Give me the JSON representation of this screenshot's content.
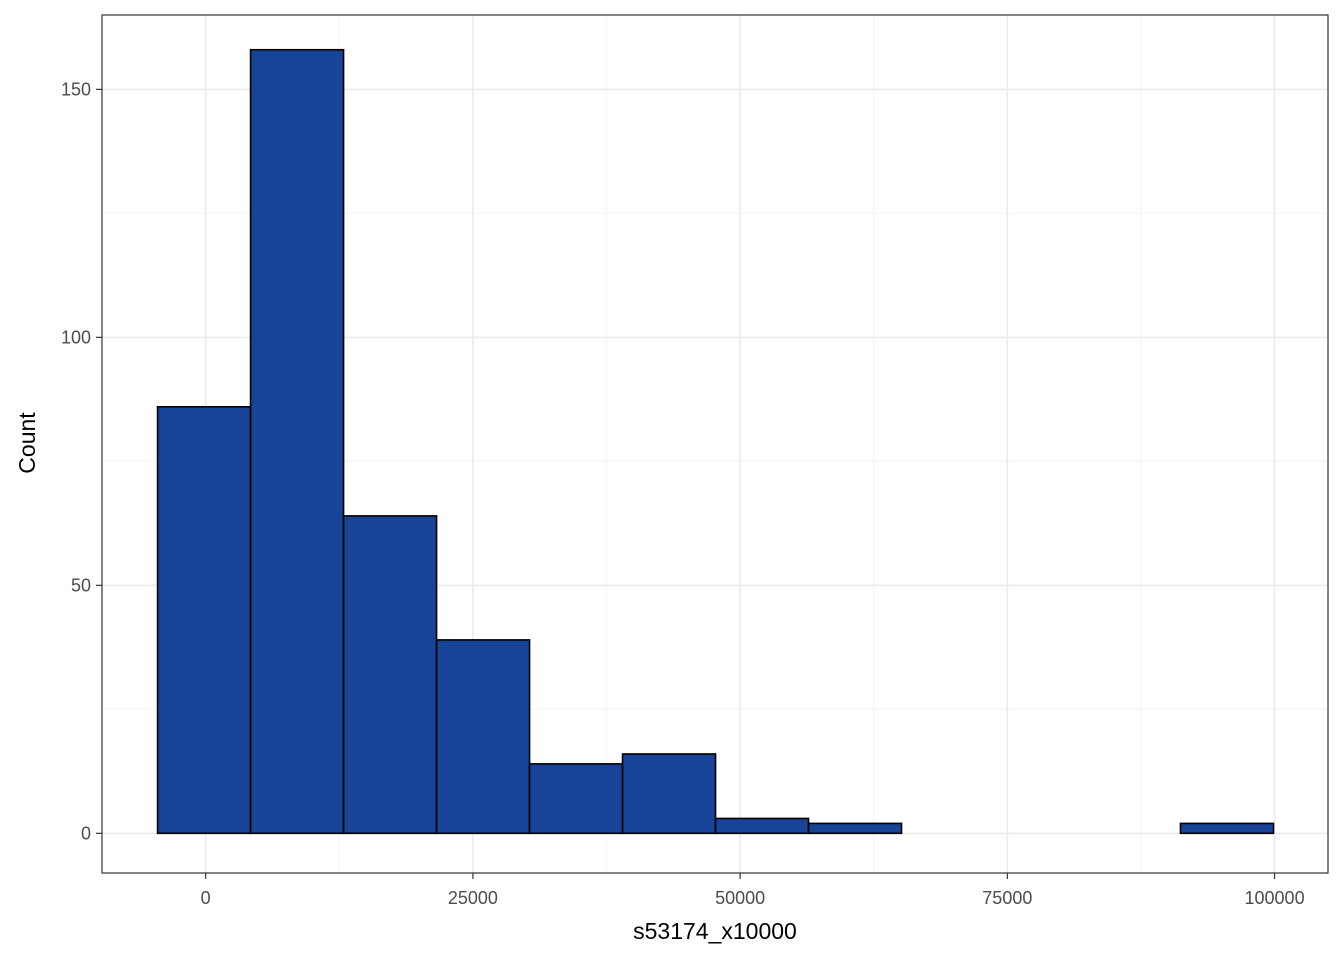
{
  "chart_data": {
    "type": "bar",
    "subtype": "histogram",
    "title": "",
    "xlabel": "s53174_x10000",
    "ylabel": "Count",
    "bins": [
      {
        "x0": -4500,
        "x1": 4200,
        "count": 86
      },
      {
        "x0": 4200,
        "x1": 12900,
        "count": 158
      },
      {
        "x0": 12900,
        "x1": 21600,
        "count": 64
      },
      {
        "x0": 21600,
        "x1": 30300,
        "count": 39
      },
      {
        "x0": 30300,
        "x1": 39000,
        "count": 14
      },
      {
        "x0": 39000,
        "x1": 47700,
        "count": 16
      },
      {
        "x0": 47700,
        "x1": 56400,
        "count": 3
      },
      {
        "x0": 56400,
        "x1": 65100,
        "count": 2
      },
      {
        "x0": 65100,
        "x1": 73800,
        "count": 0
      },
      {
        "x0": 73800,
        "x1": 82500,
        "count": 0
      },
      {
        "x0": 82500,
        "x1": 91200,
        "count": 0
      },
      {
        "x0": 91200,
        "x1": 99900,
        "count": 2
      }
    ],
    "xlim": [
      -9700,
      105000
    ],
    "ylim": [
      -8,
      165
    ],
    "x_ticks": [
      0,
      25000,
      50000,
      75000,
      100000
    ],
    "y_ticks": [
      0,
      50,
      100,
      150
    ],
    "x_minor_ticks": [
      12500,
      37500,
      62500,
      87500
    ],
    "y_minor_ticks": [
      25,
      75,
      125
    ],
    "grid": true,
    "colors": {
      "bar_fill": "#184497",
      "bar_stroke": "#000000",
      "grid_major": "#ebebeb",
      "grid_minor": "#f5f5f5",
      "panel_border": "#333333"
    }
  }
}
